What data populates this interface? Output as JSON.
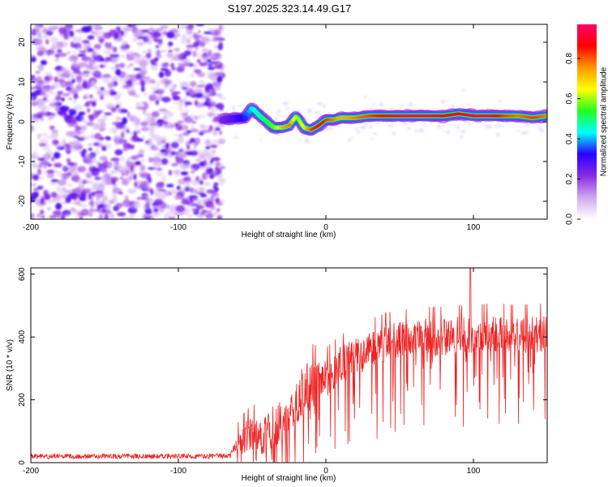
{
  "title": "S197.2025.323.14.49.G17",
  "chart_data": [
    {
      "type": "heatmap",
      "title": "S197.2025.323.14.49.G17",
      "xlabel": "Height of straight line (km)",
      "ylabel": "Frequency (Hz)",
      "xlim": [
        -200,
        150
      ],
      "ylim": [
        -24.5,
        24.5
      ],
      "xticks": [
        -200,
        -100,
        0,
        100
      ],
      "xtick_labels": [
        "-200",
        "-100",
        "0",
        "100"
      ],
      "yticks": [
        -20,
        -10,
        0,
        10,
        20
      ],
      "ytick_labels": [
        "-20",
        "-10",
        "0",
        "10",
        "20"
      ],
      "noise_region_x": [
        -200,
        -70
      ],
      "signal_ridge": {
        "x": [
          -70,
          -62,
          -55,
          -50,
          -45,
          -40,
          -35,
          -30,
          -25,
          -20,
          -15,
          -10,
          -5,
          0,
          5,
          10,
          20,
          30,
          40,
          50,
          60,
          70,
          80,
          90,
          100,
          110,
          120,
          130,
          140,
          150
        ],
        "frequency": [
          0.5,
          0.8,
          1.0,
          3.5,
          1.5,
          0.0,
          -1.5,
          -1.5,
          -1.0,
          1.5,
          -1.5,
          -2.0,
          -1.0,
          0.5,
          0.5,
          1.0,
          1.0,
          1.5,
          1.5,
          1.5,
          1.5,
          1.5,
          1.5,
          2.0,
          1.5,
          1.5,
          1.5,
          1.5,
          1.0,
          1.5
        ],
        "amplitude": [
          0.25,
          0.3,
          0.35,
          0.45,
          0.5,
          0.55,
          0.6,
          0.75,
          0.8,
          0.6,
          0.7,
          0.85,
          0.9,
          0.85,
          0.8,
          0.75,
          0.8,
          0.85,
          0.9,
          0.95,
          0.95,
          0.95,
          0.9,
          0.9,
          0.95,
          0.95,
          0.85,
          0.8,
          0.85,
          0.8
        ]
      },
      "colorbar": {
        "label": "Normalized spectral amplitude",
        "range": [
          0,
          0.97
        ],
        "ticks": [
          0.0,
          0.2,
          0.4,
          0.6,
          0.8
        ],
        "tick_labels": [
          "0.0",
          "0.2",
          "0.4",
          "0.6",
          "0.8"
        ],
        "colors": [
          "#ffffff",
          "#cfa8f0",
          "#8a2be2",
          "#2a00ff",
          "#00ffff",
          "#22ff22",
          "#ffff00",
          "#ff9900",
          "#ff0000",
          "#ff0066"
        ]
      }
    },
    {
      "type": "line",
      "xlabel": "Height of straight line (km)",
      "ylabel": "SNR (10 * v/v)",
      "xlim": [
        -200,
        150
      ],
      "ylim": [
        0,
        620
      ],
      "xticks": [
        -200,
        -100,
        0,
        100
      ],
      "xtick_labels": [
        "-200",
        "-100",
        "0",
        "100"
      ],
      "yticks": [
        0,
        200,
        400,
        600
      ],
      "ytick_labels": [
        "0",
        "200",
        "400",
        "600"
      ],
      "color": "#ee2222",
      "series": [
        {
          "name": "SNR",
          "x": [
            -200,
            -180,
            -160,
            -140,
            -120,
            -100,
            -80,
            -65,
            -60,
            -55,
            -50,
            -45,
            -40,
            -35,
            -30,
            -25,
            -20,
            -15,
            -10,
            -5,
            0,
            5,
            10,
            20,
            30,
            40,
            50,
            60,
            70,
            80,
            90,
            100,
            110,
            120,
            130,
            140,
            150
          ],
          "baseline": [
            20,
            20,
            20,
            20,
            20,
            20,
            20,
            22,
            60,
            80,
            90,
            85,
            90,
            120,
            130,
            160,
            200,
            230,
            250,
            260,
            270,
            290,
            310,
            340,
            360,
            380,
            390,
            395,
            400,
            400,
            405,
            405,
            410,
            410,
            405,
            410,
            410
          ],
          "spread": [
            8,
            8,
            8,
            8,
            8,
            8,
            8,
            8,
            40,
            50,
            60,
            60,
            60,
            70,
            70,
            70,
            80,
            80,
            80,
            70,
            60,
            60,
            60,
            60,
            60,
            60,
            60,
            60,
            60,
            60,
            60,
            60,
            60,
            60,
            60,
            60,
            60
          ],
          "peak": {
            "x": 98,
            "y": 620
          }
        }
      ]
    }
  ]
}
